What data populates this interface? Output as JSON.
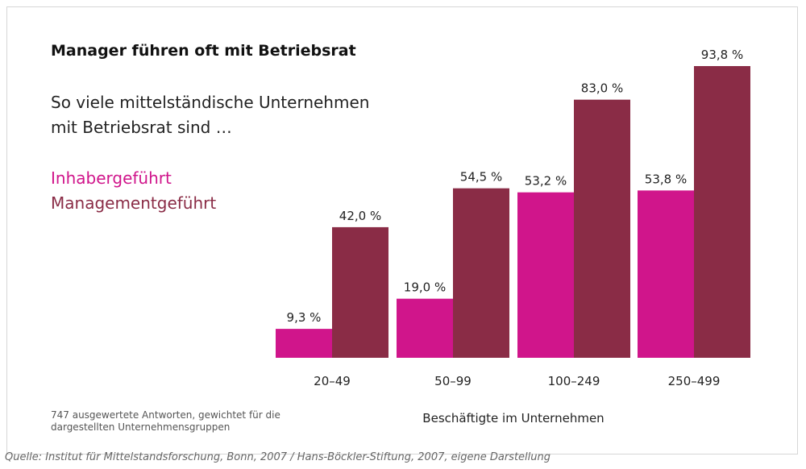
{
  "header": {
    "title": "Manager führen oft mit Betriebsrat",
    "subtitle": "So viele mittelständische Unternehmen mit Betriebsrat sind …"
  },
  "footer": {
    "note": "747 ausgewertete Antworten, gewichtet für die dargestellten Unternehmensgruppen",
    "source": "Quelle: Institut für Mittelstandsforschung, Bonn, 2007 / Hans-Böckler-Stiftung, 2007, eigene Darstellung"
  },
  "chart_data": {
    "type": "bar",
    "title": "Manager führen oft mit Betriebsrat",
    "subtitle": "So viele mittelständische Unternehmen mit Betriebsrat sind …",
    "xlabel": "Beschäftigte im Unternehmen",
    "ylabel": "",
    "categories": [
      "20–49",
      "50–99",
      "100–249",
      "250–499"
    ],
    "ylim": [
      0,
      100
    ],
    "grid": false,
    "legend_placement": "left",
    "series": [
      {
        "name": "Inhabergeführt",
        "color": "#d0158b",
        "values": [
          9.3,
          19.0,
          53.2,
          53.8
        ],
        "labels": [
          "9,3 %",
          "19,0 %",
          "53,2 %",
          "53,8 %"
        ]
      },
      {
        "name": "Managementgeführt",
        "color": "#8a2c46",
        "values": [
          42.0,
          54.5,
          83.0,
          93.8
        ],
        "labels": [
          "42,0 %",
          "54,5 %",
          "83,0 %",
          "93,8 %"
        ]
      }
    ]
  }
}
